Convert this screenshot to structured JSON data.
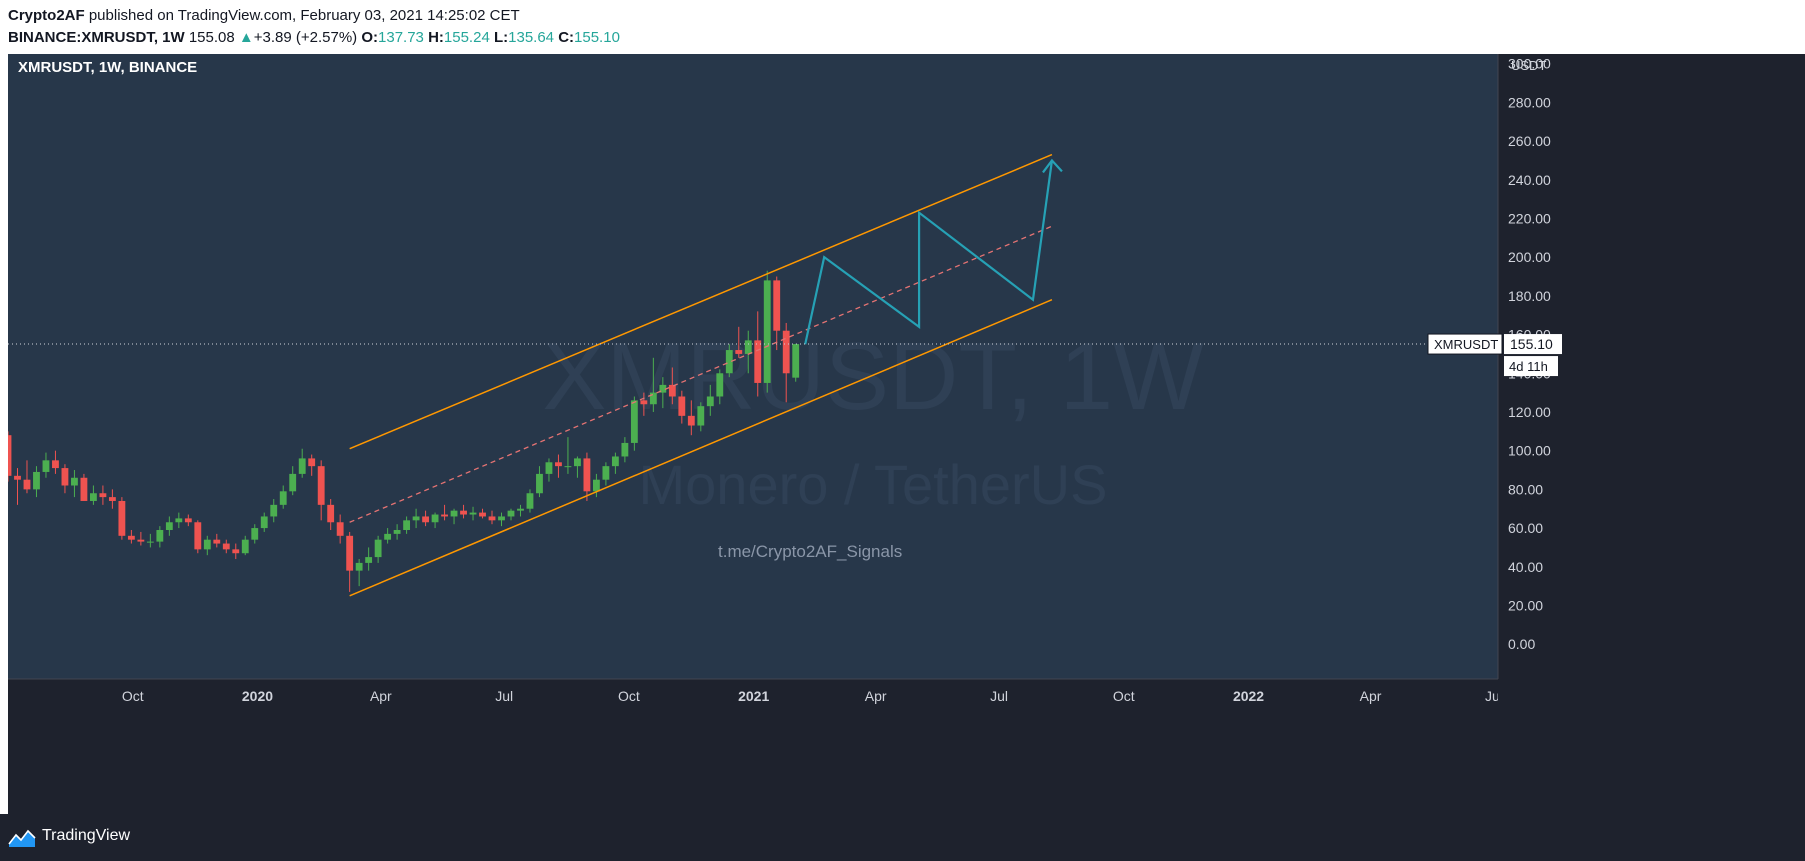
{
  "header": {
    "author": "Crypto2AF",
    "published": "published on TradingView.com, February 03, 2021 14:25:02 CET",
    "symbol": "BINANCE:XMRUSDT, 1W",
    "last": "155.08",
    "change": "+3.89 (+2.57%)",
    "o_label": "O:",
    "o_value": "137.73",
    "h_label": "H:",
    "h_value": "155.24",
    "l_label": "L:",
    "l_value": "135.64",
    "c_label": "C:",
    "c_value": "155.10"
  },
  "footer": {
    "brand": "TradingView"
  },
  "colors": {
    "background": "#27374a",
    "up": "#4caf50",
    "down": "#ef5350",
    "channel": "#ff9800",
    "projection": "#26a1b5",
    "midline": "#e57373",
    "text": "#ffffff",
    "watermark": "#2f4055"
  },
  "chart_data": {
    "type": "candlestick",
    "title": "XMRUSDT, 1W, BINANCE",
    "watermark": [
      "XMRUSDT, 1W",
      "Monero / TetherUS"
    ],
    "annotation": "t.me/Crypto2AF_Signals",
    "currency": "USDT",
    "ylim": [
      -18,
      305
    ],
    "yticks": [
      300,
      280,
      260,
      240,
      220,
      200,
      180,
      160,
      140,
      120,
      100,
      80,
      60,
      40,
      20,
      0
    ],
    "ytick_labels": [
      "300.00",
      "280.00",
      "260.00",
      "240.00",
      "220.00",
      "200.00",
      "180.00",
      "160.00",
      "140.00",
      "120.00",
      "100.00",
      "80.00",
      "60.00",
      "40.00",
      "20.00",
      "0.00"
    ],
    "xlim": [
      "2019-07-01",
      "2022-07-04"
    ],
    "xticks": [
      {
        "date": "2019-10-01",
        "label": "Oct"
      },
      {
        "date": "2020-01-01",
        "label": "2020"
      },
      {
        "date": "2020-04-01",
        "label": "Apr"
      },
      {
        "date": "2020-07-01",
        "label": "Jul"
      },
      {
        "date": "2020-10-01",
        "label": "Oct"
      },
      {
        "date": "2021-01-01",
        "label": "2021"
      },
      {
        "date": "2021-04-01",
        "label": "Apr"
      },
      {
        "date": "2021-07-01",
        "label": "Jul"
      },
      {
        "date": "2021-10-01",
        "label": "Oct"
      },
      {
        "date": "2022-01-01",
        "label": "2022"
      },
      {
        "date": "2022-04-01",
        "label": "Apr"
      },
      {
        "date": "2022-07-01",
        "label": "Jul"
      }
    ],
    "last_price": {
      "value": 155.1,
      "symbol": "XMRUSDT",
      "label": "155.10",
      "countdown": "4d 11h"
    },
    "candles": [
      {
        "t": "2019-07-01",
        "o": 108,
        "h": 110,
        "l": 84,
        "c": 87
      },
      {
        "t": "2019-07-08",
        "o": 87,
        "h": 91,
        "l": 72,
        "c": 85
      },
      {
        "t": "2019-07-15",
        "o": 85,
        "h": 95,
        "l": 78,
        "c": 80
      },
      {
        "t": "2019-07-22",
        "o": 80,
        "h": 92,
        "l": 76,
        "c": 89
      },
      {
        "t": "2019-07-29",
        "o": 89,
        "h": 99,
        "l": 86,
        "c": 95
      },
      {
        "t": "2019-08-05",
        "o": 95,
        "h": 100,
        "l": 88,
        "c": 91
      },
      {
        "t": "2019-08-12",
        "o": 91,
        "h": 93,
        "l": 78,
        "c": 82
      },
      {
        "t": "2019-08-19",
        "o": 82,
        "h": 90,
        "l": 76,
        "c": 86
      },
      {
        "t": "2019-08-26",
        "o": 86,
        "h": 88,
        "l": 74,
        "c": 74
      },
      {
        "t": "2019-09-02",
        "o": 74,
        "h": 82,
        "l": 72,
        "c": 78
      },
      {
        "t": "2019-09-09",
        "o": 78,
        "h": 82,
        "l": 72,
        "c": 76
      },
      {
        "t": "2019-09-16",
        "o": 76,
        "h": 80,
        "l": 70,
        "c": 74
      },
      {
        "t": "2019-09-23",
        "o": 74,
        "h": 76,
        "l": 54,
        "c": 56
      },
      {
        "t": "2019-09-30",
        "o": 56,
        "h": 59,
        "l": 52,
        "c": 54
      },
      {
        "t": "2019-10-07",
        "o": 54,
        "h": 58,
        "l": 51,
        "c": 53
      },
      {
        "t": "2019-10-14",
        "o": 53,
        "h": 57,
        "l": 50,
        "c": 53
      },
      {
        "t": "2019-10-21",
        "o": 53,
        "h": 61,
        "l": 50,
        "c": 59
      },
      {
        "t": "2019-10-28",
        "o": 59,
        "h": 66,
        "l": 56,
        "c": 63
      },
      {
        "t": "2019-11-04",
        "o": 63,
        "h": 68,
        "l": 60,
        "c": 65
      },
      {
        "t": "2019-11-11",
        "o": 65,
        "h": 67,
        "l": 61,
        "c": 63
      },
      {
        "t": "2019-11-18",
        "o": 63,
        "h": 64,
        "l": 47,
        "c": 49
      },
      {
        "t": "2019-11-25",
        "o": 49,
        "h": 56,
        "l": 46,
        "c": 54
      },
      {
        "t": "2019-12-02",
        "o": 54,
        "h": 57,
        "l": 50,
        "c": 52
      },
      {
        "t": "2019-12-09",
        "o": 52,
        "h": 54,
        "l": 47,
        "c": 49
      },
      {
        "t": "2019-12-16",
        "o": 49,
        "h": 52,
        "l": 44,
        "c": 47
      },
      {
        "t": "2019-12-23",
        "o": 47,
        "h": 56,
        "l": 46,
        "c": 54
      },
      {
        "t": "2019-12-30",
        "o": 54,
        "h": 62,
        "l": 52,
        "c": 60
      },
      {
        "t": "2020-01-06",
        "o": 60,
        "h": 68,
        "l": 58,
        "c": 66
      },
      {
        "t": "2020-01-13",
        "o": 66,
        "h": 75,
        "l": 63,
        "c": 72
      },
      {
        "t": "2020-01-20",
        "o": 72,
        "h": 82,
        "l": 70,
        "c": 79
      },
      {
        "t": "2020-01-27",
        "o": 79,
        "h": 92,
        "l": 77,
        "c": 88
      },
      {
        "t": "2020-02-03",
        "o": 88,
        "h": 101,
        "l": 86,
        "c": 96
      },
      {
        "t": "2020-02-10",
        "o": 96,
        "h": 98,
        "l": 87,
        "c": 92
      },
      {
        "t": "2020-02-17",
        "o": 92,
        "h": 95,
        "l": 64,
        "c": 72
      },
      {
        "t": "2020-02-24",
        "o": 72,
        "h": 75,
        "l": 59,
        "c": 63
      },
      {
        "t": "2020-03-02",
        "o": 63,
        "h": 67,
        "l": 52,
        "c": 56
      },
      {
        "t": "2020-03-09",
        "o": 56,
        "h": 58,
        "l": 27,
        "c": 38
      },
      {
        "t": "2020-03-16",
        "o": 38,
        "h": 44,
        "l": 30,
        "c": 42
      },
      {
        "t": "2020-03-23",
        "o": 42,
        "h": 50,
        "l": 38,
        "c": 45
      },
      {
        "t": "2020-03-30",
        "o": 45,
        "h": 56,
        "l": 42,
        "c": 54
      },
      {
        "t": "2020-04-06",
        "o": 54,
        "h": 60,
        "l": 52,
        "c": 57
      },
      {
        "t": "2020-04-13",
        "o": 57,
        "h": 62,
        "l": 54,
        "c": 59
      },
      {
        "t": "2020-04-20",
        "o": 59,
        "h": 66,
        "l": 57,
        "c": 64
      },
      {
        "t": "2020-04-27",
        "o": 64,
        "h": 70,
        "l": 60,
        "c": 66
      },
      {
        "t": "2020-05-04",
        "o": 66,
        "h": 69,
        "l": 61,
        "c": 63
      },
      {
        "t": "2020-05-11",
        "o": 63,
        "h": 68,
        "l": 60,
        "c": 67
      },
      {
        "t": "2020-05-18",
        "o": 67,
        "h": 72,
        "l": 64,
        "c": 66
      },
      {
        "t": "2020-05-25",
        "o": 66,
        "h": 70,
        "l": 62,
        "c": 69
      },
      {
        "t": "2020-06-01",
        "o": 69,
        "h": 72,
        "l": 65,
        "c": 67
      },
      {
        "t": "2020-06-08",
        "o": 67,
        "h": 71,
        "l": 64,
        "c": 68
      },
      {
        "t": "2020-06-15",
        "o": 68,
        "h": 70,
        "l": 65,
        "c": 66
      },
      {
        "t": "2020-06-22",
        "o": 66,
        "h": 69,
        "l": 62,
        "c": 64
      },
      {
        "t": "2020-06-29",
        "o": 64,
        "h": 68,
        "l": 61,
        "c": 66
      },
      {
        "t": "2020-07-06",
        "o": 66,
        "h": 70,
        "l": 64,
        "c": 69
      },
      {
        "t": "2020-07-13",
        "o": 69,
        "h": 72,
        "l": 66,
        "c": 70
      },
      {
        "t": "2020-07-20",
        "o": 70,
        "h": 80,
        "l": 68,
        "c": 78
      },
      {
        "t": "2020-07-27",
        "o": 78,
        "h": 92,
        "l": 76,
        "c": 88
      },
      {
        "t": "2020-08-03",
        "o": 88,
        "h": 96,
        "l": 84,
        "c": 94
      },
      {
        "t": "2020-08-10",
        "o": 94,
        "h": 98,
        "l": 86,
        "c": 92
      },
      {
        "t": "2020-08-17",
        "o": 92,
        "h": 107,
        "l": 88,
        "c": 92
      },
      {
        "t": "2020-08-24",
        "o": 92,
        "h": 97,
        "l": 86,
        "c": 96
      },
      {
        "t": "2020-08-31",
        "o": 96,
        "h": 99,
        "l": 74,
        "c": 79
      },
      {
        "t": "2020-09-07",
        "o": 79,
        "h": 88,
        "l": 76,
        "c": 85
      },
      {
        "t": "2020-09-14",
        "o": 85,
        "h": 94,
        "l": 82,
        "c": 92
      },
      {
        "t": "2020-09-21",
        "o": 92,
        "h": 99,
        "l": 88,
        "c": 97
      },
      {
        "t": "2020-09-28",
        "o": 97,
        "h": 107,
        "l": 94,
        "c": 104
      },
      {
        "t": "2020-10-05",
        "o": 104,
        "h": 128,
        "l": 100,
        "c": 126
      },
      {
        "t": "2020-10-12",
        "o": 126,
        "h": 130,
        "l": 118,
        "c": 124
      },
      {
        "t": "2020-10-19",
        "o": 124,
        "h": 148,
        "l": 120,
        "c": 130
      },
      {
        "t": "2020-10-26",
        "o": 130,
        "h": 138,
        "l": 122,
        "c": 134
      },
      {
        "t": "2020-11-02",
        "o": 134,
        "h": 143,
        "l": 124,
        "c": 128
      },
      {
        "t": "2020-11-09",
        "o": 128,
        "h": 131,
        "l": 114,
        "c": 118
      },
      {
        "t": "2020-11-16",
        "o": 118,
        "h": 126,
        "l": 108,
        "c": 113
      },
      {
        "t": "2020-11-23",
        "o": 113,
        "h": 125,
        "l": 110,
        "c": 123
      },
      {
        "t": "2020-11-30",
        "o": 123,
        "h": 134,
        "l": 118,
        "c": 128
      },
      {
        "t": "2020-12-07",
        "o": 128,
        "h": 142,
        "l": 124,
        "c": 140
      },
      {
        "t": "2020-12-14",
        "o": 140,
        "h": 155,
        "l": 138,
        "c": 152
      },
      {
        "t": "2020-12-21",
        "o": 152,
        "h": 164,
        "l": 148,
        "c": 150
      },
      {
        "t": "2020-12-28",
        "o": 150,
        "h": 162,
        "l": 140,
        "c": 157
      },
      {
        "t": "2021-01-04",
        "o": 157,
        "h": 172,
        "l": 128,
        "c": 135
      },
      {
        "t": "2021-01-11",
        "o": 135,
        "h": 193,
        "l": 130,
        "c": 188
      },
      {
        "t": "2021-01-18",
        "o": 188,
        "h": 190,
        "l": 152,
        "c": 162
      },
      {
        "t": "2021-01-25",
        "o": 162,
        "h": 166,
        "l": 125,
        "c": 140
      },
      {
        "t": "2021-02-01",
        "o": 137.73,
        "h": 155.24,
        "l": 135.64,
        "c": 155.1
      }
    ],
    "channel_upper": [
      {
        "t": "2020-03-09",
        "v": 101
      },
      {
        "t": "2021-08-09",
        "v": 253
      }
    ],
    "channel_lower": [
      {
        "t": "2020-03-09",
        "v": 25
      },
      {
        "t": "2021-08-09",
        "v": 178
      }
    ],
    "channel_mid": [
      {
        "t": "2020-03-09",
        "v": 63
      },
      {
        "t": "2021-08-09",
        "v": 216
      }
    ],
    "projection_path": [
      {
        "t": "2021-02-08",
        "v": 155
      },
      {
        "t": "2021-02-22",
        "v": 200
      },
      {
        "t": "2021-05-03",
        "v": 164
      },
      {
        "t": "2021-05-03",
        "v": 223
      },
      {
        "t": "2021-07-26",
        "v": 178
      },
      {
        "t": "2021-08-09",
        "v": 250
      }
    ]
  }
}
